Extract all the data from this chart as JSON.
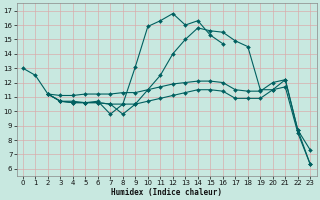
{
  "xlabel": "Humidex (Indice chaleur)",
  "xlim": [
    -0.5,
    23.5
  ],
  "ylim": [
    5.5,
    17.5
  ],
  "yticks": [
    6,
    7,
    8,
    9,
    10,
    11,
    12,
    13,
    14,
    15,
    16,
    17
  ],
  "xticks": [
    0,
    1,
    2,
    3,
    4,
    5,
    6,
    7,
    8,
    9,
    10,
    11,
    12,
    13,
    14,
    15,
    16,
    17,
    18,
    19,
    20,
    21,
    22,
    23
  ],
  "bg_color": "#c8e8e0",
  "grid_color": "#dba8a8",
  "line_color": "#006060",
  "line1_x": [
    0,
    1,
    2,
    3,
    4,
    5,
    6,
    7,
    8,
    9,
    10,
    11,
    12,
    13,
    14,
    15,
    16
  ],
  "line1_y": [
    13.0,
    12.5,
    11.2,
    10.7,
    10.7,
    10.6,
    10.7,
    9.8,
    10.5,
    13.1,
    15.9,
    16.3,
    16.8,
    16.0,
    16.3,
    15.3,
    14.7
  ],
  "line2_x": [
    2,
    3,
    4,
    5,
    6,
    7,
    8,
    9,
    10,
    11,
    12,
    13,
    14,
    15,
    16,
    17,
    18,
    19,
    20,
    21,
    22,
    23
  ],
  "line2_y": [
    11.2,
    11.1,
    11.1,
    11.2,
    11.2,
    11.2,
    11.3,
    11.3,
    11.5,
    11.7,
    11.9,
    12.0,
    12.1,
    12.1,
    12.0,
    11.5,
    11.4,
    11.4,
    12.0,
    12.2,
    8.7,
    7.3
  ],
  "line3_x": [
    2,
    3,
    4,
    5,
    6,
    7,
    8,
    9,
    10,
    11,
    12,
    13,
    14,
    15,
    16,
    17,
    18,
    19,
    20,
    21,
    22,
    23
  ],
  "line3_y": [
    11.2,
    10.7,
    10.6,
    10.6,
    10.6,
    10.5,
    10.5,
    10.5,
    10.7,
    10.9,
    11.1,
    11.3,
    11.5,
    11.5,
    11.4,
    10.9,
    10.9,
    10.9,
    11.5,
    11.7,
    8.5,
    6.3
  ],
  "line4_x": [
    2,
    3,
    4,
    5,
    6,
    7,
    8,
    9,
    10,
    11,
    12,
    13,
    14,
    15,
    16,
    17,
    18,
    19,
    20,
    21,
    22,
    23
  ],
  "line4_y": [
    11.2,
    10.7,
    10.6,
    10.6,
    10.6,
    10.5,
    9.8,
    10.5,
    11.5,
    12.5,
    14.0,
    15.0,
    15.8,
    15.6,
    15.5,
    14.9,
    14.5,
    11.5,
    11.5,
    12.2,
    8.7,
    6.3
  ],
  "marker": "D",
  "markersize": 2.0,
  "linewidth": 0.8,
  "tick_fontsize": 5,
  "xlabel_fontsize": 5.5,
  "xlabel_fontweight": "bold"
}
